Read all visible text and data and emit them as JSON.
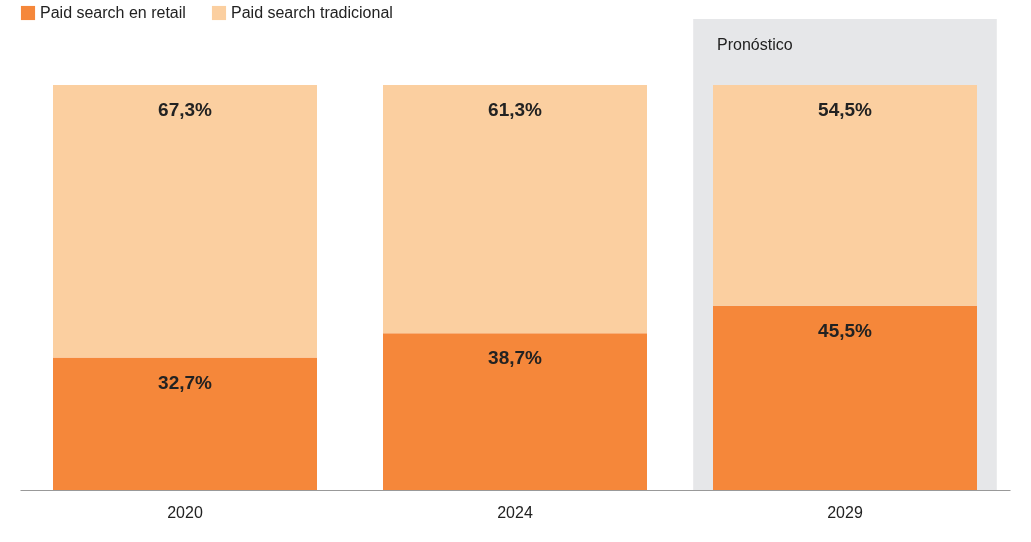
{
  "chart_data": {
    "type": "bar",
    "stacked": true,
    "categories": [
      "2020",
      "2024",
      "2029"
    ],
    "series": [
      {
        "name": "Paid search en retail",
        "color": "#f5873a",
        "values": [
          32.7,
          38.7,
          45.5
        ],
        "value_labels": [
          "32,7%",
          "38,7%",
          "45,5%"
        ]
      },
      {
        "name": "Paid search tradicional",
        "color": "#fbcfa0",
        "values": [
          67.3,
          61.3,
          54.5
        ],
        "value_labels": [
          "67,3%",
          "61,3%",
          "54,5%"
        ]
      }
    ],
    "tick_labels": "x",
    "grid": false,
    "legend": "top left",
    "bands": [
      {
        "axis": "x",
        "from": "2029",
        "to": "2029",
        "label": "Pronóstico",
        "color": "#e6e7e9"
      }
    ]
  }
}
